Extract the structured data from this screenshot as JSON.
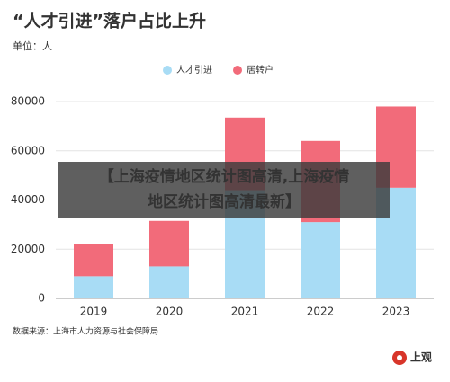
{
  "chart_data": {
    "type": "stacked_bar",
    "title": "“人才引进”落户占比上升",
    "unit_label": "单位：人",
    "categories": [
      "2019",
      "2020",
      "2021",
      "2022",
      "2023"
    ],
    "series": [
      {
        "name": "人才引进",
        "color": "#a8dcf5",
        "values": [
          9000,
          13000,
          44000,
          31000,
          45000
        ]
      },
      {
        "name": "居转户",
        "color": "#f26b7a",
        "values": [
          13000,
          18500,
          29500,
          33000,
          33000
        ]
      }
    ],
    "ylim": [
      0,
      80000
    ],
    "yticks": [
      0,
      20000,
      40000,
      60000,
      80000
    ],
    "grid": true,
    "legend": "top",
    "source": "数据来源：上海市人力资源与社会保障局",
    "logo": "上观",
    "overlay_lines": [
      "【上海疫情地区统计图高清,上海疫情",
      "地区统计图高清最新】"
    ]
  }
}
